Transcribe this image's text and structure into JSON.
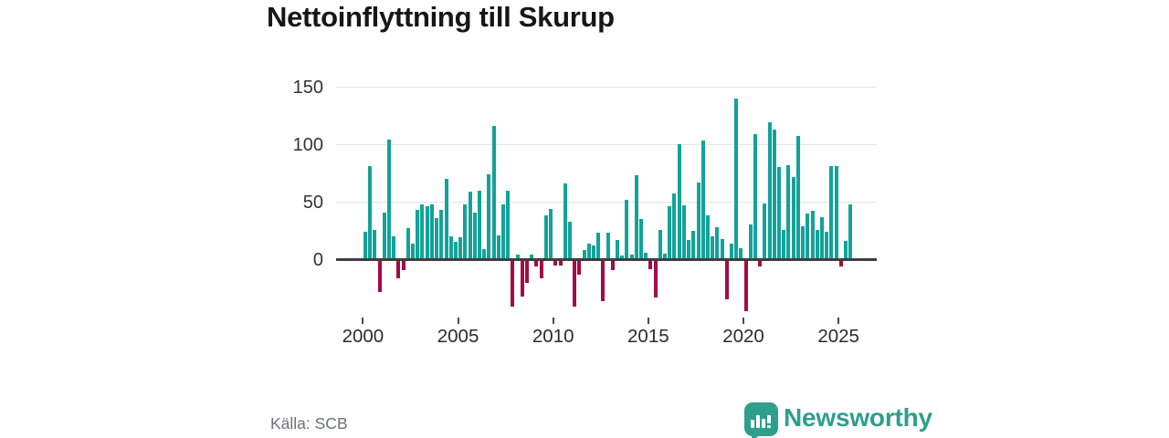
{
  "chart_data": {
    "type": "bar",
    "title": "Nettoinflyttning till Skurup",
    "xlabel": "",
    "ylabel": "",
    "frequency": "quarterly",
    "start_period": "2000-Q1",
    "end_period": "2025-Q3",
    "y_ticks": [
      0,
      50,
      100,
      150
    ],
    "x_ticks": [
      2000,
      2005,
      2010,
      2015,
      2020,
      2025
    ],
    "ylim": [
      -50,
      150
    ],
    "grid": "horizontal",
    "legend": "none",
    "colors": {
      "positive": "#12a39a",
      "negative": "#a30b45"
    },
    "values_by_year": {
      "2000": [
        23,
        80,
        25,
        -27
      ],
      "2001": [
        40,
        103,
        19,
        -15
      ],
      "2002": [
        -8,
        26,
        13,
        42
      ],
      "2003": [
        47,
        45,
        47,
        35
      ],
      "2004": [
        42,
        69,
        19,
        14
      ],
      "2005": [
        18,
        47,
        58,
        40
      ],
      "2006": [
        59,
        8,
        73,
        115
      ],
      "2007": [
        20,
        47,
        59,
        -40
      ],
      "2008": [
        3,
        -31,
        -19,
        3
      ],
      "2009": [
        -5,
        -15,
        37,
        43
      ],
      "2010": [
        -4,
        -4,
        65,
        32
      ],
      "2011": [
        -40,
        -12,
        7,
        13
      ],
      "2012": [
        11,
        22,
        -35,
        22
      ],
      "2013": [
        -8,
        16,
        2,
        51
      ],
      "2014": [
        3,
        72,
        34,
        5
      ],
      "2015": [
        -7,
        -32,
        25,
        4
      ],
      "2016": [
        45,
        56,
        99,
        46
      ],
      "2017": [
        16,
        24,
        66,
        102
      ],
      "2018": [
        37,
        19,
        27,
        17
      ],
      "2019": [
        -33,
        13,
        139,
        9
      ],
      "2020": [
        -44,
        29,
        108,
        -5
      ],
      "2021": [
        48,
        118,
        112,
        79
      ],
      "2022": [
        25,
        81,
        71,
        106
      ],
      "2023": [
        28,
        39,
        41,
        25
      ],
      "2024": [
        36,
        23,
        80,
        80
      ],
      "2025": [
        -5,
        15,
        47
      ]
    }
  },
  "footer": {
    "source": "Källa: SCB",
    "brand": "Newsworthy",
    "brand_color": "#2e9f8c"
  }
}
